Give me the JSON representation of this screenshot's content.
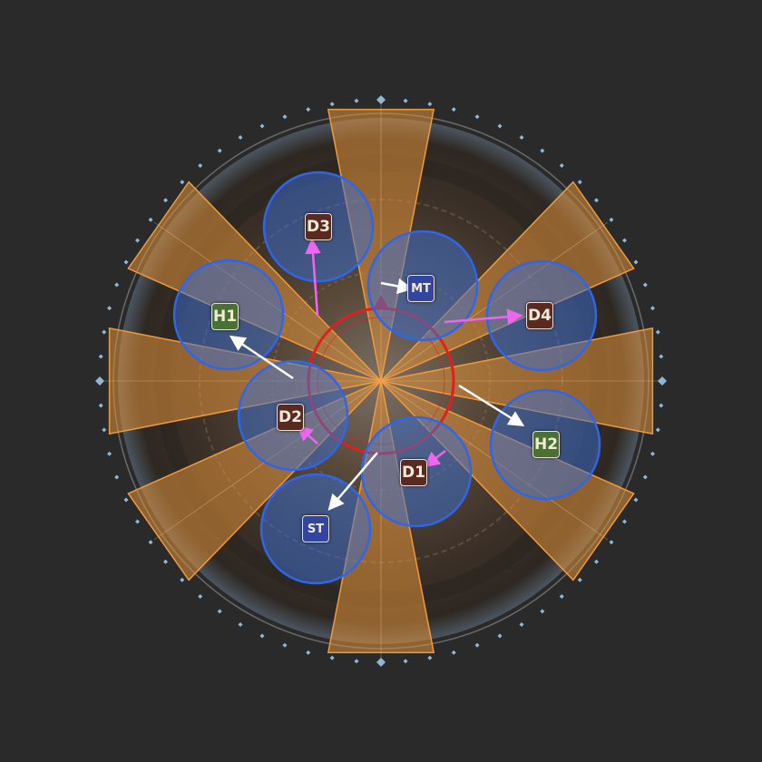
{
  "colors": {
    "background": "#2a2a2a",
    "arena_floor": "#4a3f33",
    "cone_fill": "#e0913a",
    "cone_stroke": "#ef9a3c",
    "aoe_fill": "#3a6fd6",
    "aoe_stroke": "#2f66e8",
    "boss_ring": "#e02020",
    "edge_dots": "#8fb8d8",
    "arrow_white": "#ffffff",
    "arrow_magenta": "#ee66ee",
    "role_tank": "#3445a0",
    "role_healer": "#4a7034",
    "role_dps": "#5a2a22"
  },
  "arena": {
    "shape": "circle",
    "cone_count": 10,
    "cone_directions": [
      "N",
      "NE",
      "E",
      "SE",
      "S",
      "SW",
      "W",
      "NW",
      "NNE",
      "SSW"
    ],
    "boss_marker": "red-target-ring",
    "edge_markers": "diamond-dots"
  },
  "aoe_circles": [
    {
      "role": "D3"
    },
    {
      "role": "MT"
    },
    {
      "role": "H1"
    },
    {
      "role": "D4"
    },
    {
      "role": "D2"
    },
    {
      "role": "H2"
    },
    {
      "role": "D1"
    },
    {
      "role": "ST"
    }
  ],
  "players": [
    {
      "label": "D3",
      "role": "dps",
      "arrow": "magenta",
      "icon": "dps-marker"
    },
    {
      "label": "MT",
      "role": "tank",
      "arrow": "white",
      "icon": "tank-marker"
    },
    {
      "label": "H1",
      "role": "healer",
      "arrow": "white",
      "icon": "healer-marker"
    },
    {
      "label": "D4",
      "role": "dps",
      "arrow": "magenta",
      "icon": "dps-marker"
    },
    {
      "label": "D2",
      "role": "dps",
      "arrow": "magenta",
      "icon": "dps-marker"
    },
    {
      "label": "H2",
      "role": "healer",
      "arrow": "white",
      "icon": "healer-marker"
    },
    {
      "label": "D1",
      "role": "dps",
      "arrow": "magenta",
      "icon": "dps-marker"
    },
    {
      "label": "ST",
      "role": "tank",
      "arrow": "white",
      "icon": "tank-marker"
    }
  ]
}
